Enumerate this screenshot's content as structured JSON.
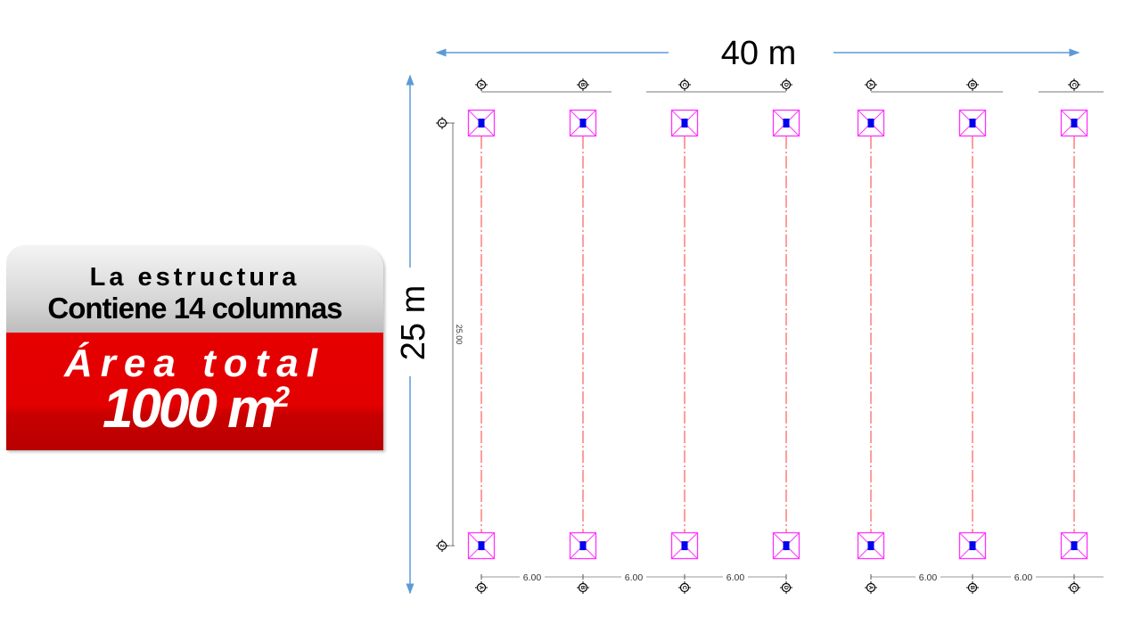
{
  "badge": {
    "line1": "La estructura",
    "line2": "Contiene 14 columnas",
    "line3": "Área total",
    "area_value": "1000 m",
    "area_exponent": "2"
  },
  "dimensions": {
    "width_label": "40 m",
    "height_label": "25 m",
    "vertical_dim": "25.00",
    "bay_spacing": [
      "6.00",
      "6.00",
      "6.00",
      "6.00",
      "6.00"
    ]
  },
  "grid": {
    "column_axes": [
      "A",
      "B",
      "C",
      "D",
      "A",
      "B",
      "C"
    ],
    "row_axes": [
      "1",
      "2"
    ]
  },
  "colors": {
    "arrow": "#5b9bd5",
    "column_outline": "#ff33ff",
    "column_core": "#0000ee",
    "axis_line": "#ff3b3b",
    "badge_red": "#e20000"
  }
}
